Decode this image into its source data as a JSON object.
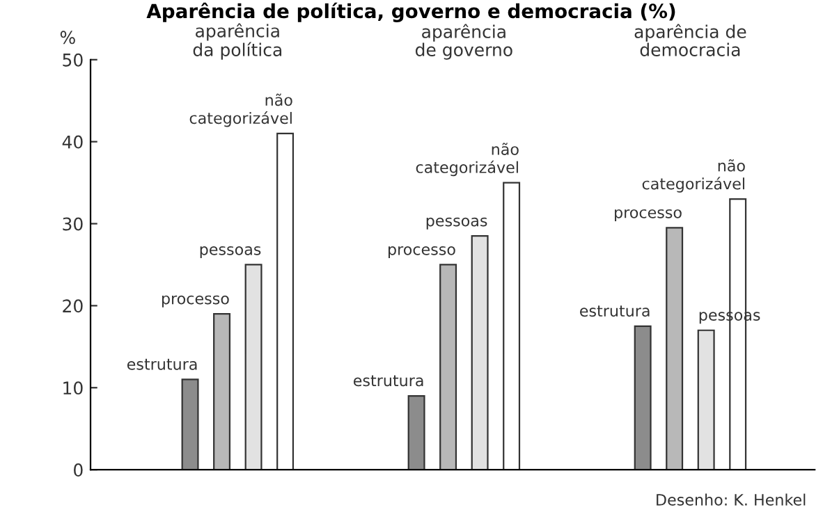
{
  "chart_data": {
    "type": "bar",
    "title": "Aparência de política, governo e democracia (%)",
    "ylabel": "%",
    "categories": [
      "aparência\nda política",
      "aparência\nde governo",
      "aparência de\ndemocracia"
    ],
    "series": [
      {
        "name": "estrutura",
        "color": "#8c8c8c",
        "values": [
          11,
          9,
          17.5
        ]
      },
      {
        "name": "processo",
        "color": "#b8b8b8",
        "values": [
          19,
          25,
          29.5
        ]
      },
      {
        "name": "pessoas",
        "color": "#e2e2e2",
        "values": [
          25,
          28.5,
          17
        ]
      },
      {
        "name": "não\ncategorizável",
        "color": "#ffffff",
        "values": [
          41,
          35,
          33
        ]
      }
    ],
    "ylim": [
      0,
      50
    ],
    "yticks": [
      0,
      10,
      20,
      30,
      40,
      50
    ],
    "grid": false,
    "legend": false,
    "annotations": [
      "Desenho: K. Henkel"
    ]
  }
}
